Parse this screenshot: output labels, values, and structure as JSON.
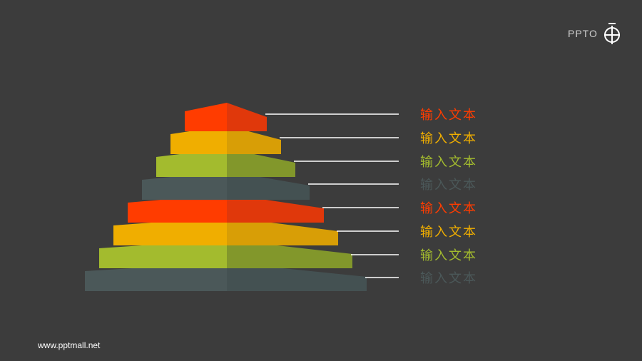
{
  "diagram": {
    "tiers": [
      {
        "label": "输入文本",
        "color_left": "#ff3c00",
        "color_right": "#e0380b"
      },
      {
        "label": "输入文本",
        "color_left": "#f0ae00",
        "color_right": "#d89e06"
      },
      {
        "label": "输入文本",
        "color_left": "#a3bb2e",
        "color_right": "#82972b"
      },
      {
        "label": "输入文本",
        "color_left": "#4b5859",
        "color_right": "#445152"
      },
      {
        "label": "输入文本",
        "color_left": "#ff3c00",
        "color_right": "#e0380b"
      },
      {
        "label": "输入文本",
        "color_left": "#f0ae00",
        "color_right": "#d89e06"
      },
      {
        "label": "输入文本",
        "color_left": "#a3bb2e",
        "color_right": "#82972b"
      },
      {
        "label": "输入文本",
        "color_left": "#4b5859",
        "color_right": "#445152"
      }
    ],
    "connector_color": "#ffffff"
  },
  "footer": {
    "website": "www.pptmall.net"
  },
  "logo": {
    "text": "PPTO",
    "icon": "logo-icon"
  },
  "colors": {
    "background": "#3c3c3c"
  }
}
